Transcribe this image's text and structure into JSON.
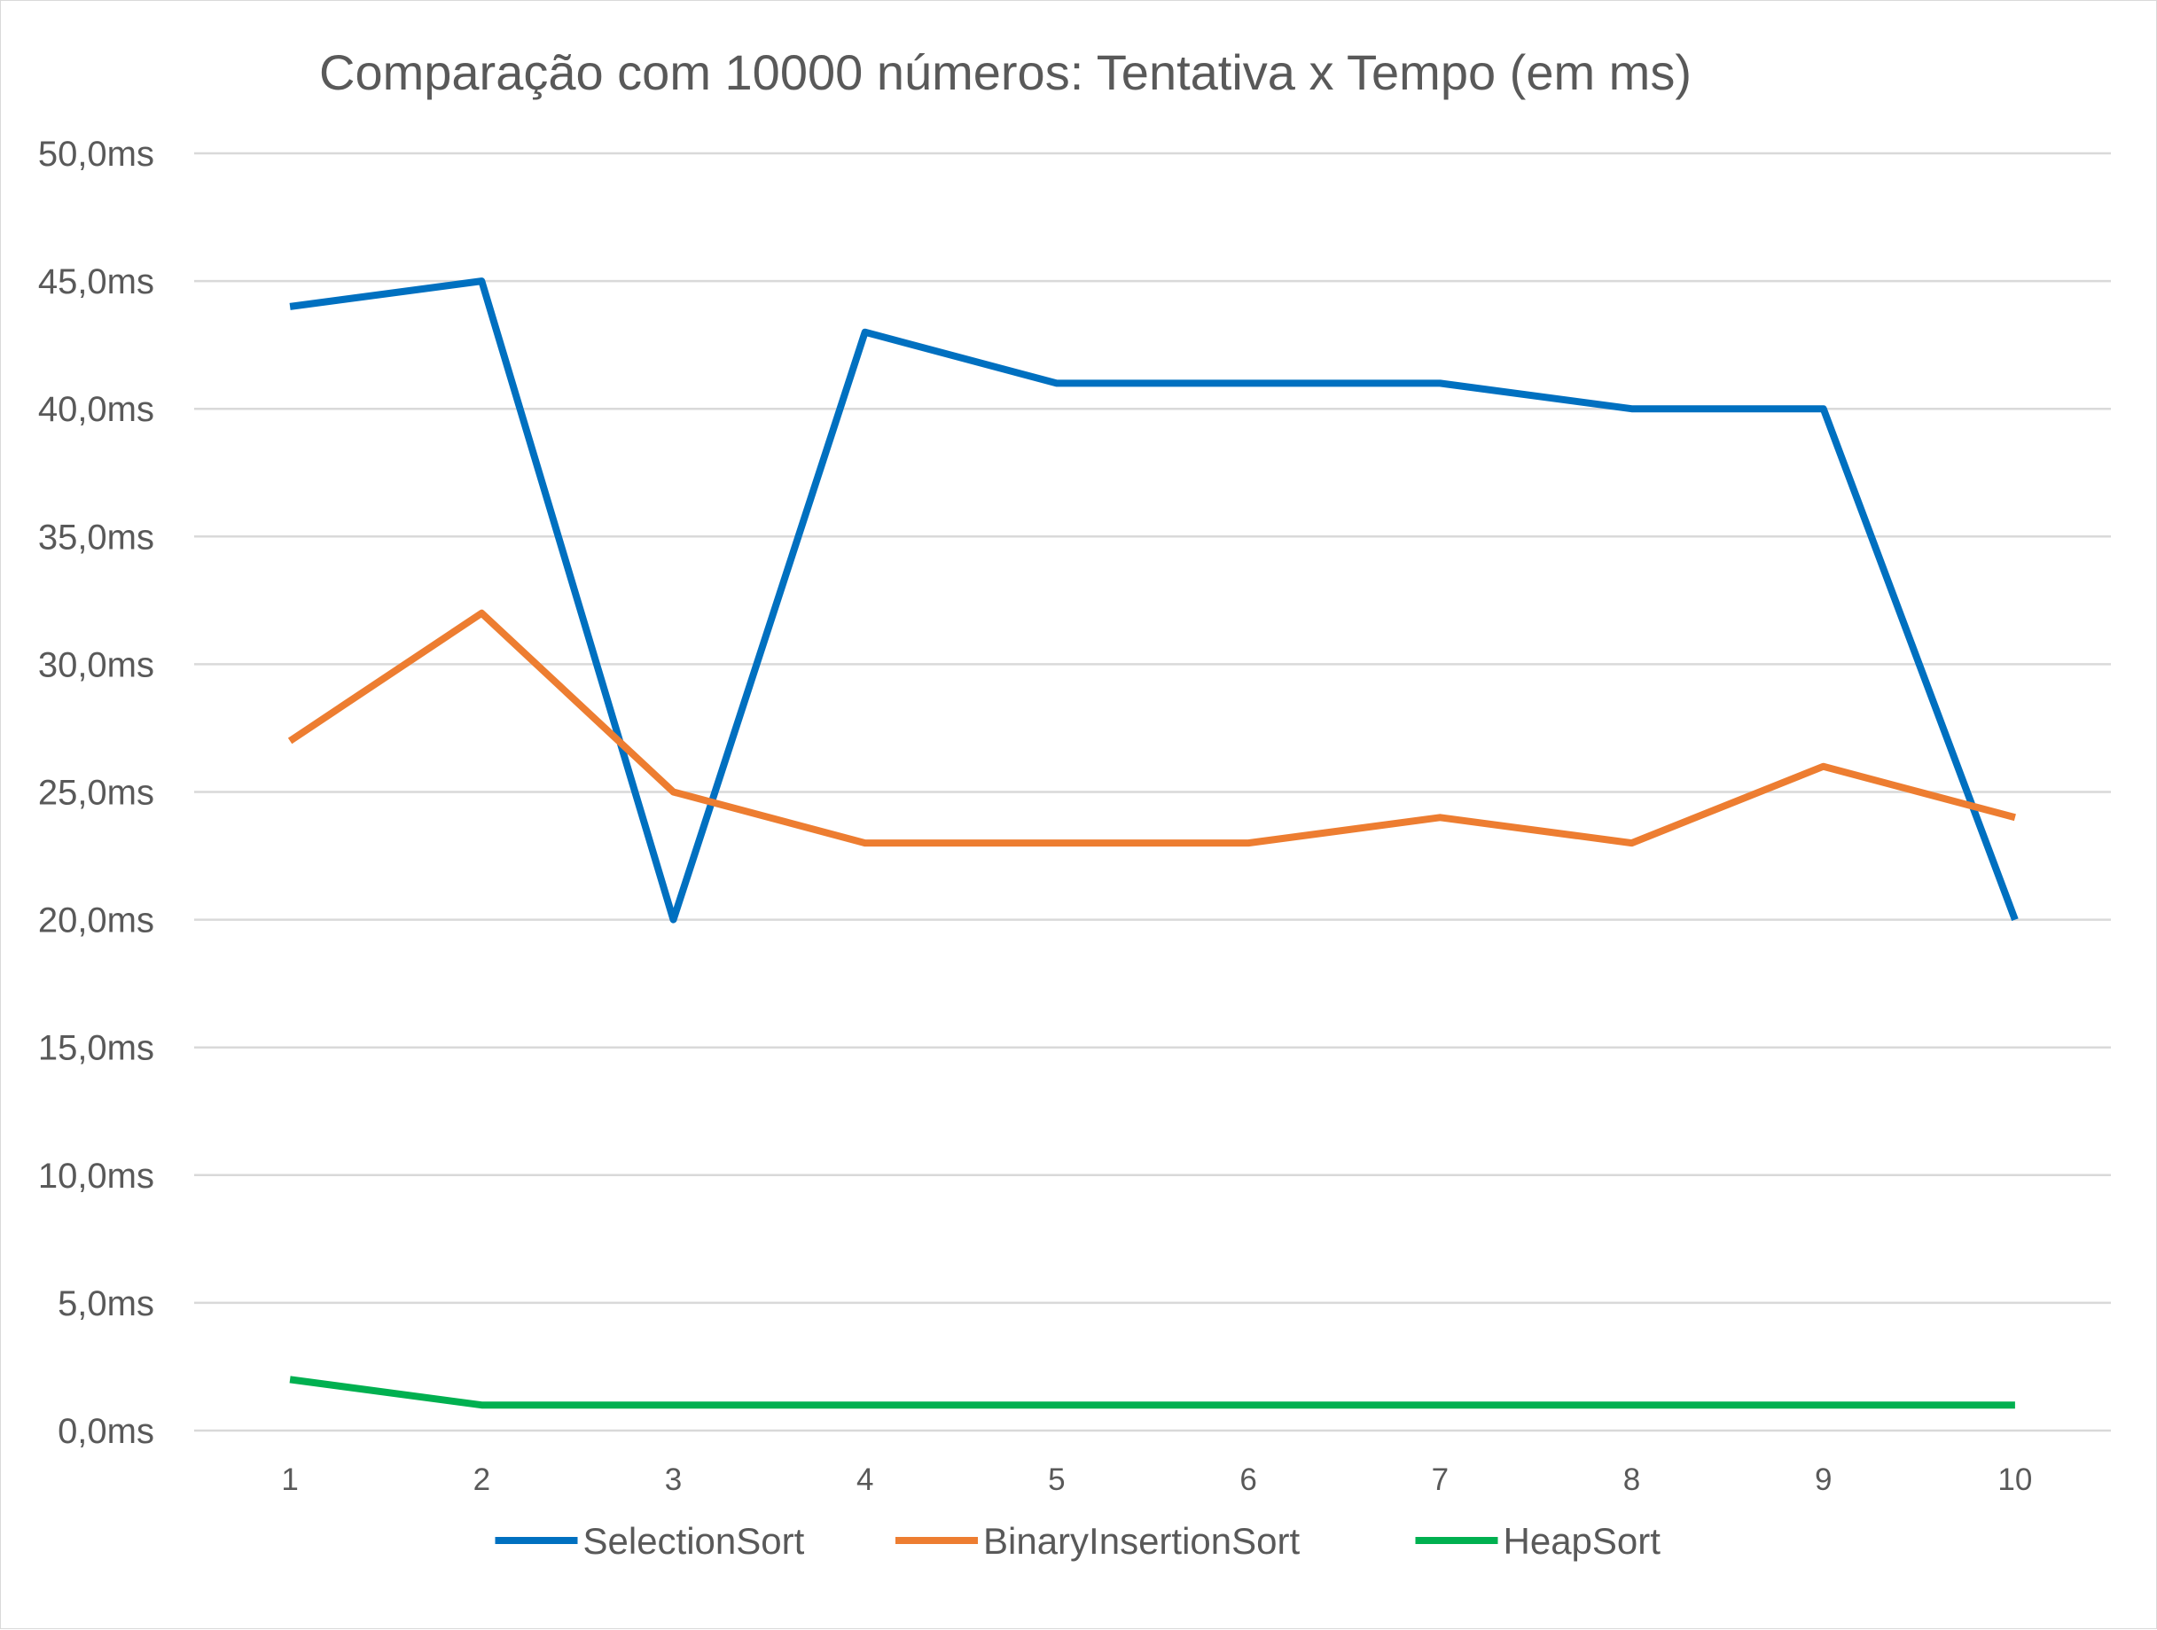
{
  "chart_data": {
    "type": "line",
    "title": "Comparação com 10000 números: Tentativa x Tempo (em ms)",
    "x": [
      "1",
      "2",
      "3",
      "4",
      "5",
      "6",
      "7",
      "8",
      "9",
      "10"
    ],
    "y_ticks": [
      "0,0ms",
      "5,0ms",
      "10,0ms",
      "15,0ms",
      "20,0ms",
      "25,0ms",
      "30,0ms",
      "35,0ms",
      "40,0ms",
      "45,0ms",
      "50,0ms"
    ],
    "ylim": [
      0,
      50
    ],
    "y_step": 5,
    "grid": true,
    "legend_position": "bottom",
    "series": [
      {
        "name": "SelectionSort",
        "color": "#0070c0",
        "values": [
          44,
          45,
          20,
          43,
          41,
          41,
          41,
          40,
          40,
          20
        ]
      },
      {
        "name": "BinaryInsertionSort",
        "color": "#ed7d31",
        "values": [
          27,
          32,
          25,
          23,
          23,
          23,
          24,
          23,
          26,
          24
        ]
      },
      {
        "name": "HeapSort",
        "color": "#00b050",
        "values": [
          2,
          1,
          1,
          1,
          1,
          1,
          1,
          1,
          1,
          1
        ]
      }
    ]
  }
}
